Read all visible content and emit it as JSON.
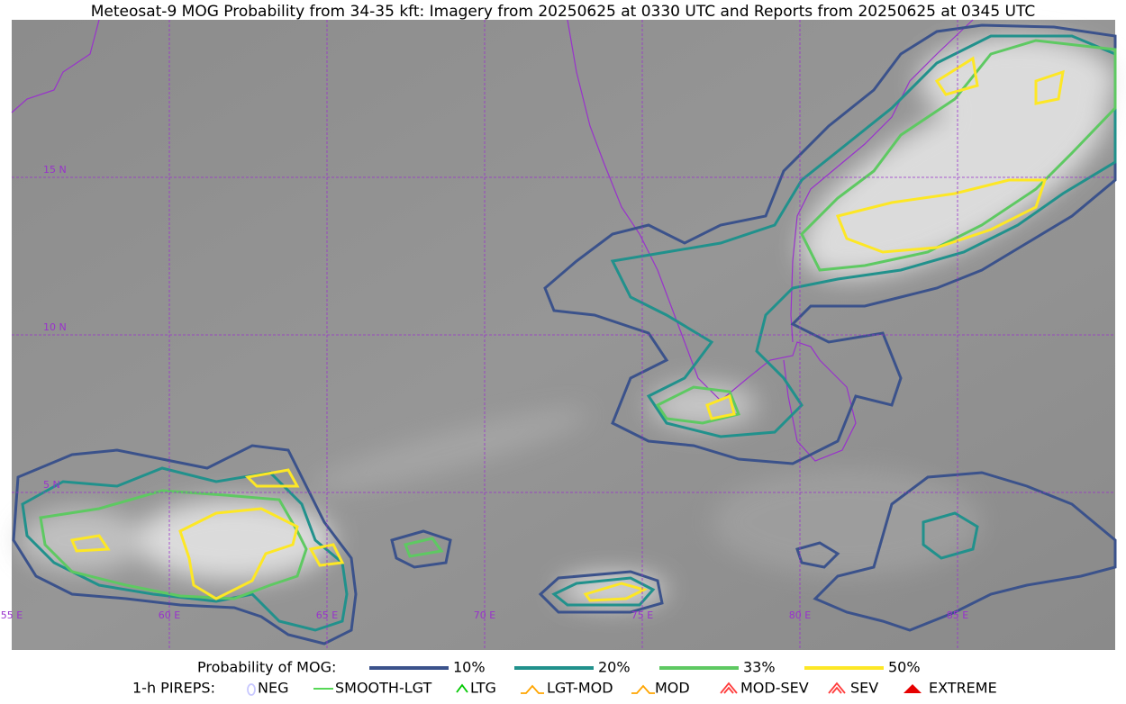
{
  "header": {
    "title": "Meteosat-9 MOG Probability from 34-35 kft: Imagery from 20250625 at 0330 UTC and Reports from 20250625 at 0345 UTC"
  },
  "map": {
    "lat_labels": [
      "15 N",
      "10 N",
      "5 N"
    ],
    "lon_labels": [
      "55 E",
      "60 E",
      "65 E",
      "70 E",
      "75 E",
      "80 E",
      "85 E"
    ]
  },
  "legend": {
    "probability_title": "Probability of MOG:",
    "probability_items": [
      {
        "label": "10%",
        "color": "#3b528b"
      },
      {
        "label": "20%",
        "color": "#21918c"
      },
      {
        "label": "33%",
        "color": "#5ec962"
      },
      {
        "label": "50%",
        "color": "#fde725"
      }
    ],
    "pireps_title": "1-h PIREPS:",
    "pireps_items": [
      {
        "label": "NEG",
        "color": "#c8c8ff"
      },
      {
        "label": "SMOOTH-LGT",
        "color": "#3fd23f"
      },
      {
        "label": "LTG",
        "color": "#00c800"
      },
      {
        "label": "LGT-MOD",
        "color": "#ffa500"
      },
      {
        "label": "MOD",
        "color": "#ffa500"
      },
      {
        "label": "MOD-SEV",
        "color": "#ff3c3c"
      },
      {
        "label": "SEV",
        "color": "#ff3c3c"
      },
      {
        "label": "EXTREME",
        "color": "#e60000"
      }
    ]
  }
}
